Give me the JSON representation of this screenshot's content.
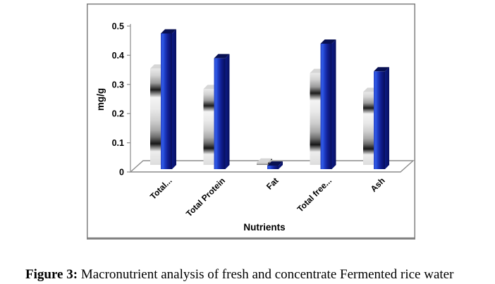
{
  "figure": {
    "caption_label": "Figure 3:",
    "caption_text": " Macronutrient analysis of fresh and concentrate Fermented rice water"
  },
  "chart_data": {
    "type": "bar",
    "projection": "3d",
    "title": "",
    "xlabel": "Nutrients",
    "ylabel": "mg/g",
    "ylim": [
      0,
      0.5
    ],
    "ytick_step": 0.1,
    "ytick_labels": [
      "0",
      "0.1",
      "0.2",
      "0.3",
      "0.4",
      "0.5"
    ],
    "grid": false,
    "legend": "none",
    "categories": [
      "Total...",
      "Total Protein",
      "Fat",
      "Total free...",
      "Ash"
    ],
    "series": [
      {
        "name": "silver-bars",
        "color": "#c8c8c8",
        "values": [
          0.33,
          0.26,
          0.008,
          0.315,
          0.25
        ]
      },
      {
        "name": "blue-bars",
        "color": "#1230b0",
        "values": [
          0.465,
          0.38,
          0.012,
          0.43,
          0.335
        ]
      }
    ]
  },
  "colors": {
    "frame_border": "#7f7f7f",
    "axis_line": "#8c8c8c",
    "bar_blue_dark": "#081052",
    "bar_blue_bright": "#2f5ae8",
    "bar_silver_light": "#f2f2f2",
    "bar_silver_dark": "#1c1c1c"
  }
}
